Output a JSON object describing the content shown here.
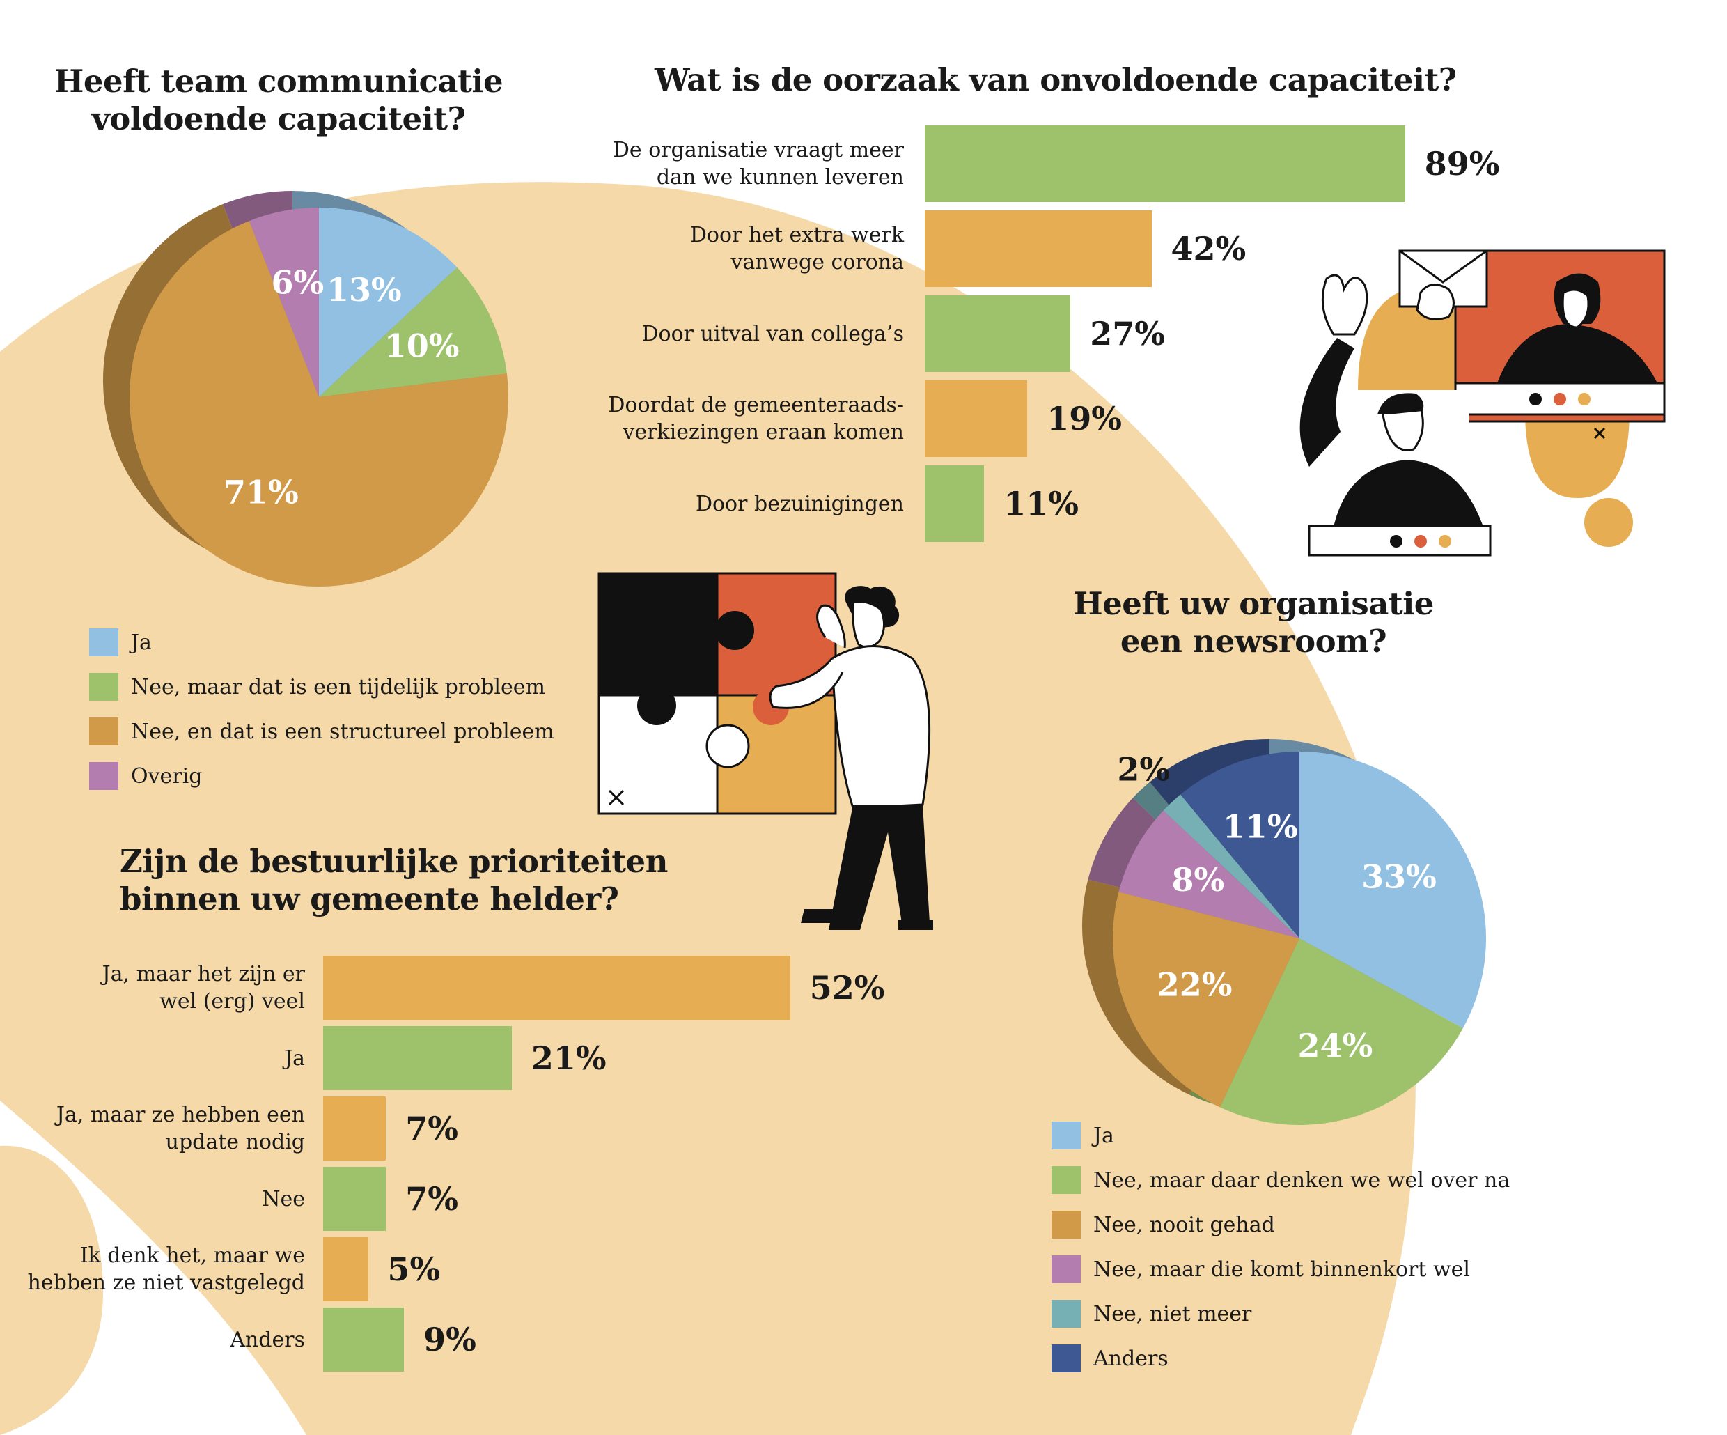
{
  "colors": {
    "background_blob": "#f6d9a8",
    "blue": "#92c0e2",
    "green": "#9dc26b",
    "orange": "#e6ad52",
    "orange_dark": "#d09a49",
    "purple": "#b47daf",
    "teal": "#76b0b4",
    "navy": "#3d5893",
    "red": "#db5f3a",
    "black": "#111111"
  },
  "icons": [
    "puzzle-illustration",
    "video-call-illustration"
  ],
  "chart_data": [
    {
      "type": "pie",
      "title": "Heeft team communicatie voldoende capaciteit?",
      "title_lines": [
        "Heeft team communicatie",
        "voldoende capaciteit?"
      ],
      "slices": [
        {
          "label": "Ja",
          "value": 13,
          "text": "13%",
          "color": "#92c0e2"
        },
        {
          "label": "Nee, maar dat is een tijdelijk probleem",
          "value": 10,
          "text": "10%",
          "color": "#9dc26b"
        },
        {
          "label": "Nee, en dat is een structureel probleem",
          "value": 71,
          "text": "71%",
          "color": "#d09a49"
        },
        {
          "label": "Overig",
          "value": 6,
          "text": "6%",
          "color": "#b47daf"
        }
      ],
      "legend_placement": "bottom-left"
    },
    {
      "type": "bar",
      "orientation": "horizontal",
      "title": "Wat is de oorzaak van onvoldoende capaciteit?",
      "categories": [
        [
          "De organisatie vraagt meer",
          "dan we kunnen leveren"
        ],
        [
          "Door het extra werk",
          "vanwege corona"
        ],
        [
          "Door uitval van collega’s"
        ],
        [
          "Doordat de gemeenteraads-",
          "verkiezingen eraan komen"
        ],
        [
          "Door bezuinigingen"
        ]
      ],
      "values": [
        89,
        42,
        27,
        19,
        11
      ],
      "value_labels": [
        "89%",
        "42%",
        "27%",
        "19%",
        "11%"
      ],
      "colors": [
        "#9dc26b",
        "#e6ad52",
        "#9dc26b",
        "#e6ad52",
        "#9dc26b"
      ],
      "unit": "%"
    },
    {
      "type": "bar",
      "orientation": "horizontal",
      "title": "Zijn de bestuurlijke prioriteiten binnen uw gemeente helder?",
      "title_lines": [
        "Zijn de bestuurlijke prioriteiten",
        "binnen uw gemeente helder?"
      ],
      "categories": [
        [
          "Ja, maar het zijn er",
          "wel (erg) veel"
        ],
        [
          "Ja"
        ],
        [
          "Ja, maar ze hebben een",
          "update nodig"
        ],
        [
          "Nee"
        ],
        [
          "Ik denk het, maar we",
          "hebben ze niet vastgelegd"
        ],
        [
          "Anders"
        ]
      ],
      "values": [
        52,
        21,
        7,
        7,
        5,
        9
      ],
      "value_labels": [
        "52%",
        "21%",
        "7%",
        "7%",
        "5%",
        "9%"
      ],
      "colors": [
        "#e6ad52",
        "#9dc26b",
        "#e6ad52",
        "#9dc26b",
        "#e6ad52",
        "#9dc26b"
      ],
      "unit": "%"
    },
    {
      "type": "pie",
      "title": "Heeft uw organisatie een newsroom?",
      "title_lines": [
        "Heeft uw organisatie",
        "een newsroom?"
      ],
      "slices": [
        {
          "label": "Ja",
          "value": 33,
          "text": "33%",
          "color": "#92c0e2"
        },
        {
          "label": "Nee, maar daar denken we wel over na",
          "value": 24,
          "text": "24%",
          "color": "#9dc26b"
        },
        {
          "label": "Nee, nooit gehad",
          "value": 22,
          "text": "22%",
          "color": "#d09a49"
        },
        {
          "label": "Nee, maar die komt binnenkort wel",
          "value": 8,
          "text": "8%",
          "color": "#b47daf"
        },
        {
          "label": "Nee, niet meer",
          "value": 2,
          "text": "2%",
          "color": "#76b0b4"
        },
        {
          "label": "Anders",
          "value": 11,
          "text": "11%",
          "color": "#3d5893"
        }
      ],
      "legend_placement": "bottom-right"
    }
  ]
}
